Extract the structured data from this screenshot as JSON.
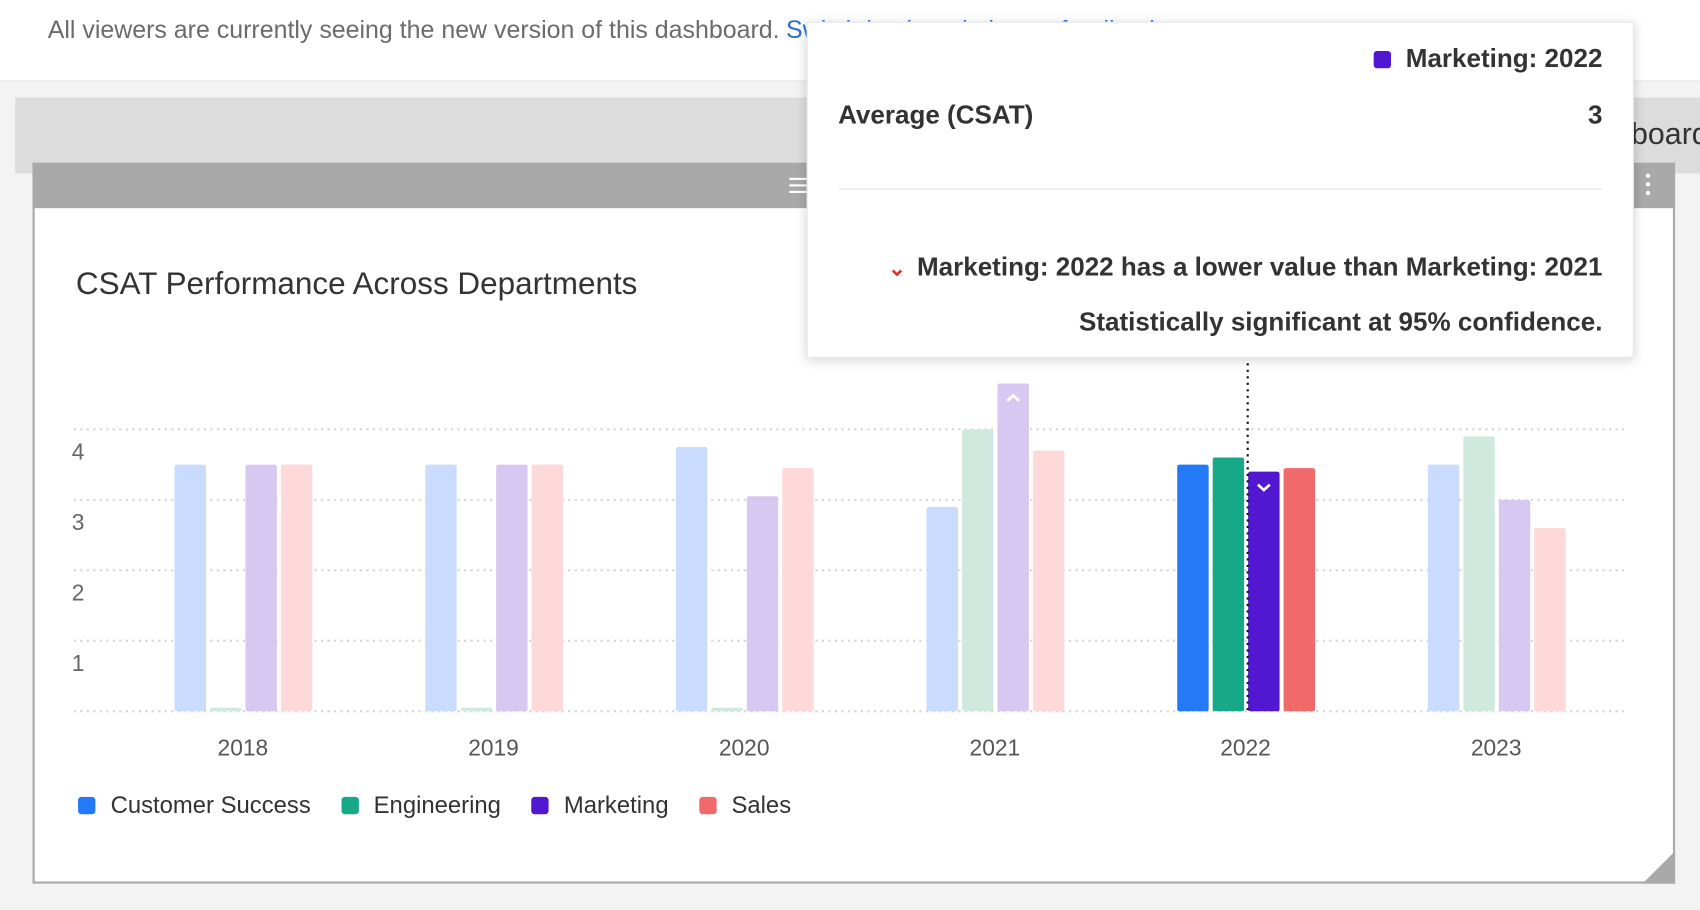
{
  "banner": {
    "text": "All viewers are currently seeing the new version of this dashboard.",
    "link": "Switch back and give us feedback"
  },
  "page_header": {
    "partial_text": "board"
  },
  "widget": {
    "title": "CSAT Performance Across Departments"
  },
  "tooltip": {
    "series_label": "Marketing: 2022",
    "series_color": "#5217d1",
    "metric": "Average (CSAT)",
    "value": "3",
    "significance": "Marketing: 2022 has a lower value than Marketing: 2021",
    "confidence": "Statistically significant at 95% confidence."
  },
  "chart_data": {
    "type": "bar",
    "title": "CSAT Performance Across Departments",
    "categories": [
      "2018",
      "2019",
      "2020",
      "2021",
      "2022",
      "2023"
    ],
    "highlighted_category": "2022",
    "ylim": [
      0,
      4.7
    ],
    "yticks": [
      1,
      2,
      3,
      4
    ],
    "grid": true,
    "legend": "bottom-left",
    "series": [
      {
        "name": "Customer Success",
        "color": "#2479f7",
        "faded": "#cadcfd",
        "values": [
          3.5,
          3.5,
          3.75,
          2.9,
          3.5,
          3.5
        ]
      },
      {
        "name": "Engineering",
        "color": "#17a887",
        "faded": "#cfe9df",
        "values": [
          0.05,
          0.05,
          0.05,
          4.0,
          3.6,
          3.9
        ]
      },
      {
        "name": "Marketing",
        "color": "#5217d1",
        "faded": "#d7c8f1",
        "values": [
          3.5,
          3.5,
          3.05,
          4.65,
          3.4,
          3.0
        ],
        "markers": {
          "2021": "up",
          "2022": "down"
        }
      },
      {
        "name": "Sales",
        "color": "#f06a6a",
        "faded": "#fdd9d9",
        "values": [
          3.5,
          3.5,
          3.45,
          3.7,
          3.45,
          2.6
        ]
      }
    ]
  }
}
